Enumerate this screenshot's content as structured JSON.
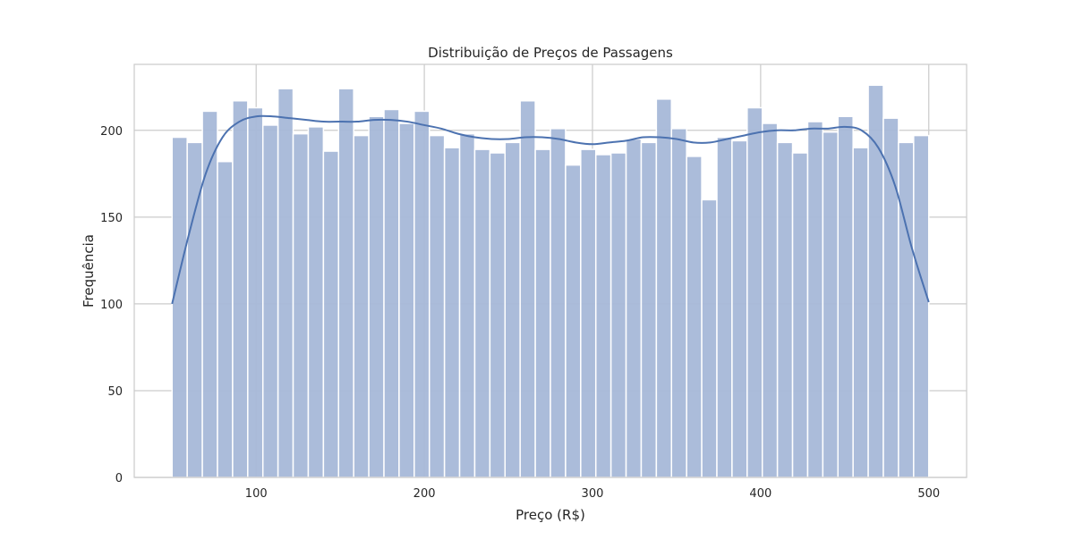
{
  "chart_data": {
    "type": "bar",
    "subtype": "histogram",
    "title": "Distribuição de Preços de Passagens",
    "xlabel": "Preço (R$)",
    "ylabel": "Frequência",
    "xlim": [
      27.5,
      522.5
    ],
    "ylim": [
      0,
      238
    ],
    "xticks": [
      100,
      200,
      300,
      400,
      500
    ],
    "yticks": [
      0,
      50,
      100,
      150,
      200
    ],
    "grid": true,
    "legend": "none",
    "colors": {
      "bar_fill": "#a6b8d8",
      "bar_edge": "#ffffff",
      "kde_line": "#4c72b0",
      "grid": "#cccccc",
      "frame": "#cccccc"
    },
    "bin_start": 50,
    "bin_width": 9,
    "values": [
      196,
      193,
      211,
      182,
      217,
      213,
      203,
      224,
      198,
      202,
      188,
      224,
      197,
      208,
      212,
      204,
      211,
      197,
      190,
      198,
      189,
      187,
      193,
      217,
      189,
      201,
      180,
      189,
      186,
      187,
      195,
      193,
      218,
      201,
      185,
      160,
      196,
      194,
      213,
      204,
      193,
      187,
      205,
      199,
      208,
      190,
      226,
      207,
      193,
      197
    ],
    "kde": {
      "x": [
        50,
        60,
        70,
        80,
        90,
        100,
        110,
        120,
        130,
        140,
        150,
        160,
        170,
        180,
        190,
        200,
        210,
        220,
        230,
        240,
        250,
        260,
        270,
        280,
        290,
        300,
        310,
        320,
        330,
        340,
        350,
        360,
        370,
        380,
        390,
        400,
        410,
        420,
        430,
        440,
        450,
        460,
        470,
        480,
        490,
        500
      ],
      "y": [
        100,
        140,
        175,
        196,
        205,
        208,
        208,
        207,
        206,
        205,
        205,
        205,
        206,
        206,
        205,
        203,
        201,
        198,
        196,
        195,
        195,
        196,
        196,
        195,
        193,
        192,
        193,
        194,
        196,
        196,
        195,
        193,
        193,
        195,
        197,
        199,
        200,
        200,
        201,
        201,
        202,
        200,
        190,
        168,
        132,
        101
      ]
    }
  }
}
